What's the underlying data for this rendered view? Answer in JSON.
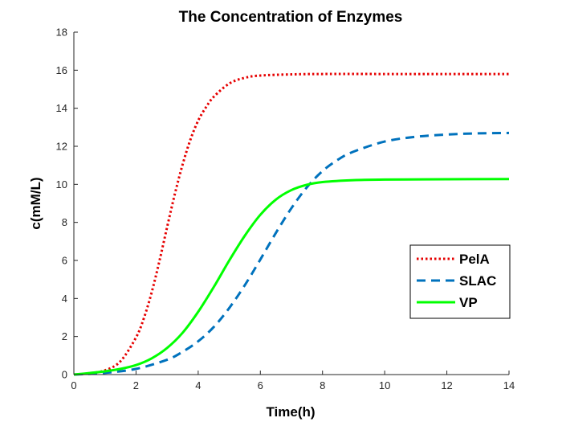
{
  "chart_data": {
    "type": "line",
    "title": "The Concentration of Enzymes",
    "xlabel": "Time(h)",
    "ylabel": "c(mM/L)",
    "xlim": [
      0,
      14
    ],
    "ylim": [
      0,
      18
    ],
    "xticks": [
      0,
      2,
      4,
      6,
      8,
      10,
      12,
      14
    ],
    "yticks": [
      0,
      2,
      4,
      6,
      8,
      10,
      12,
      14,
      16,
      18
    ],
    "grid": false,
    "legend_position": "lower-right",
    "series": [
      {
        "name": "PelA",
        "style": "dotted",
        "color": "#e60000",
        "x": [
          0,
          0.5,
          1,
          1.5,
          2,
          2.25,
          2.5,
          2.75,
          3,
          3.25,
          3.5,
          3.75,
          4,
          4.25,
          4.5,
          5,
          5.5,
          6,
          7,
          8,
          10,
          12,
          14
        ],
        "y": [
          0.0,
          0.07,
          0.22,
          0.7,
          1.95,
          2.95,
          4.3,
          5.95,
          7.75,
          9.5,
          11.05,
          12.35,
          13.35,
          14.05,
          14.6,
          15.3,
          15.6,
          15.72,
          15.78,
          15.8,
          15.8,
          15.8,
          15.8
        ]
      },
      {
        "name": "SLAC",
        "style": "dashed",
        "color": "#0072bd",
        "x": [
          0,
          1,
          2,
          3,
          3.5,
          4,
          4.5,
          5,
          5.5,
          6,
          6.5,
          7,
          7.5,
          8,
          8.5,
          9,
          10,
          11,
          12,
          13,
          14
        ],
        "y": [
          0.0,
          0.09,
          0.3,
          0.78,
          1.2,
          1.75,
          2.5,
          3.5,
          4.7,
          6.05,
          7.45,
          8.75,
          9.85,
          10.7,
          11.3,
          11.72,
          12.25,
          12.5,
          12.62,
          12.68,
          12.7
        ]
      },
      {
        "name": "VP",
        "style": "solid",
        "color": "#00ff00",
        "x": [
          0,
          0.5,
          1,
          1.5,
          2,
          2.5,
          3,
          3.5,
          4,
          4.5,
          5,
          5.5,
          6,
          6.5,
          7,
          7.5,
          8,
          9,
          10,
          12,
          14
        ],
        "y": [
          0.0,
          0.08,
          0.17,
          0.3,
          0.5,
          0.85,
          1.4,
          2.2,
          3.3,
          4.6,
          6.0,
          7.3,
          8.4,
          9.2,
          9.7,
          9.98,
          10.12,
          10.22,
          10.25,
          10.27,
          10.28
        ]
      }
    ]
  }
}
